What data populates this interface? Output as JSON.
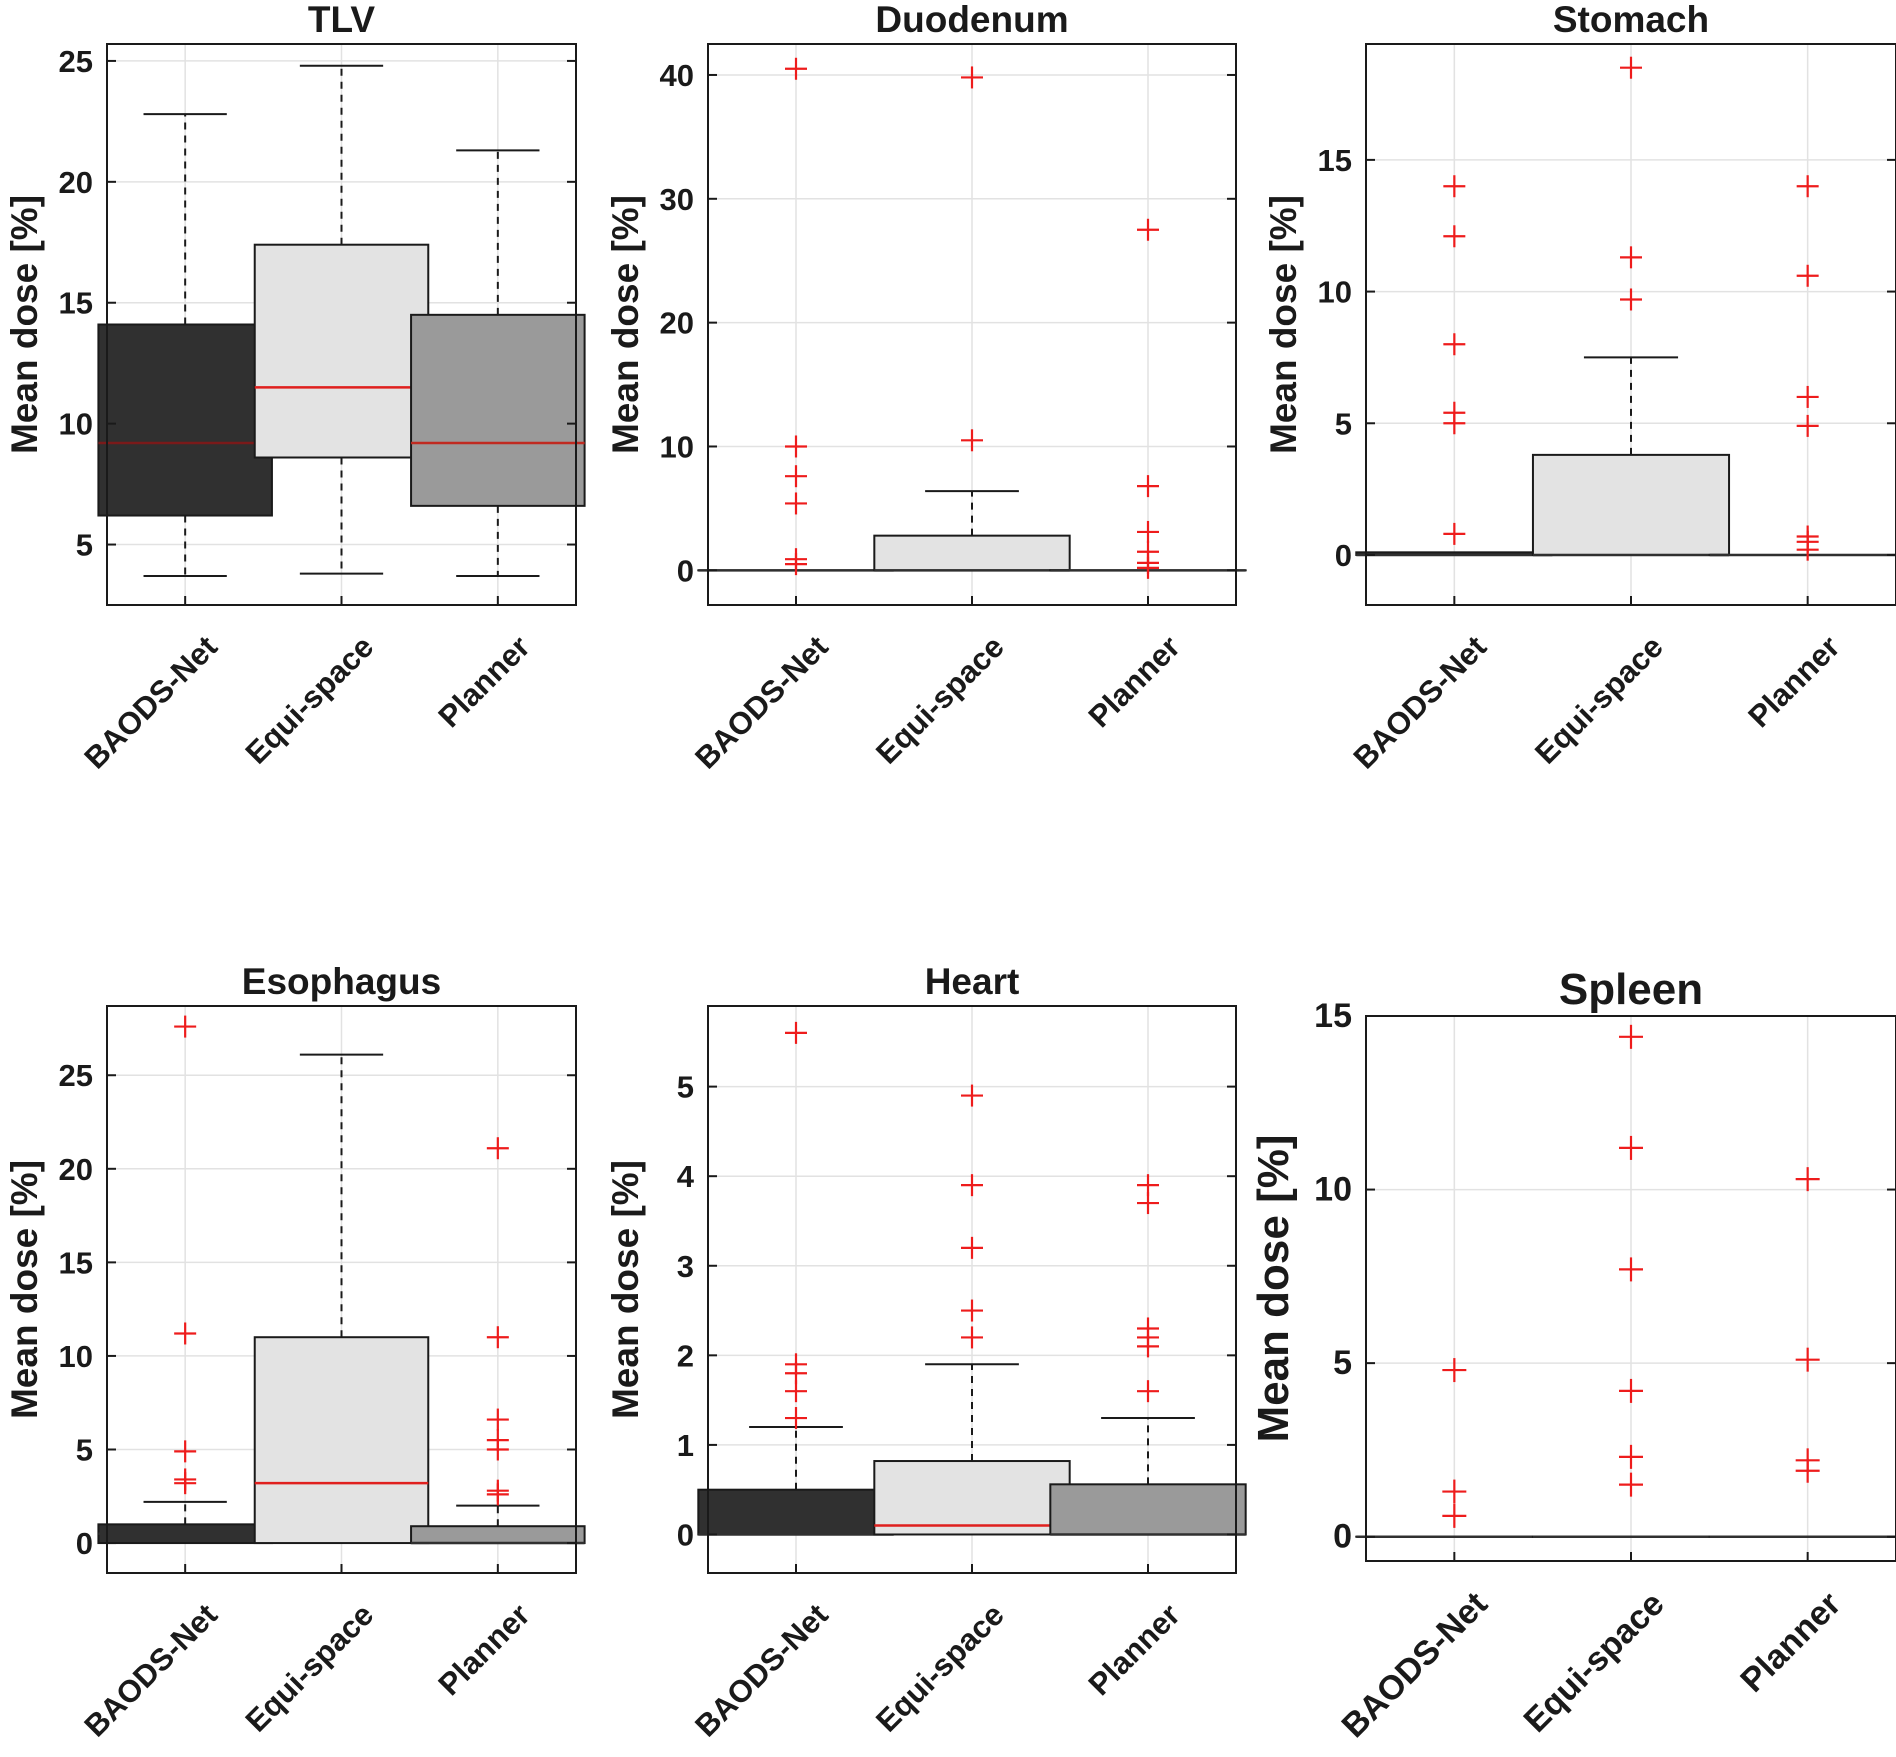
{
  "chart_data": [
    {
      "type": "box",
      "title": "TLV",
      "ylabel": "Mean dose [%]",
      "categories": [
        "BAODS-Net",
        "Equi-space",
        "Planner"
      ],
      "ylim": [
        2.5,
        25.7
      ],
      "yticks": [
        5,
        10,
        15,
        20,
        25
      ],
      "boxes": [
        {
          "whisker_low": 3.7,
          "q1": 6.2,
          "median": 9.2,
          "q3": 14.1,
          "whisker_high": 22.8,
          "fill": "#303030",
          "median_color": "#7a1a1a",
          "outliers": []
        },
        {
          "whisker_low": 3.8,
          "q1": 8.6,
          "median": 11.5,
          "q3": 17.4,
          "whisker_high": 24.8,
          "fill": "#e3e3e3",
          "median_color": "#e0201e",
          "outliers": []
        },
        {
          "whisker_low": 3.7,
          "q1": 6.6,
          "median": 9.2,
          "q3": 14.5,
          "whisker_high": 21.3,
          "fill": "#9a9a9a",
          "median_color": "#c02a20",
          "outliers": []
        }
      ]
    },
    {
      "type": "box",
      "title": "Duodenum",
      "ylabel": "Mean dose [%]",
      "categories": [
        "BAODS-Net",
        "Equi-space",
        "Planner"
      ],
      "ylim": [
        -2.8,
        42.5
      ],
      "yticks": [
        0,
        10,
        20,
        30,
        40
      ],
      "boxes": [
        {
          "whisker_low": 0,
          "q1": 0,
          "median": 0,
          "q3": 0,
          "whisker_high": 0,
          "fill": "#303030",
          "median_color": "#303030",
          "outliers": [
            40.5,
            10.0,
            7.6,
            5.4,
            0.9,
            0.5
          ]
        },
        {
          "whisker_low": 0,
          "q1": 0,
          "median": 0,
          "q3": 2.8,
          "whisker_high": 6.4,
          "fill": "#e3e3e3",
          "median_color": "#303030",
          "outliers": [
            39.8,
            10.5
          ]
        },
        {
          "whisker_low": 0,
          "q1": 0,
          "median": 0,
          "q3": 0,
          "whisker_high": 0,
          "fill": "#9a9a9a",
          "median_color": "#303030",
          "outliers": [
            27.5,
            6.8,
            3.1,
            1.5,
            0.6,
            0.2
          ]
        }
      ]
    },
    {
      "type": "box",
      "title": "Stomach",
      "ylabel": "Mean dose [%]",
      "categories": [
        "BAODS-Net",
        "Equi-space",
        "Planner"
      ],
      "ylim": [
        -1.9,
        19.4
      ],
      "yticks": [
        0,
        5,
        10,
        15
      ],
      "boxes": [
        {
          "whisker_low": 0,
          "q1": 0,
          "median": 0,
          "q3": 0.1,
          "whisker_high": 0.1,
          "fill": "#303030",
          "median_color": "#303030",
          "outliers": [
            14.0,
            12.1,
            8.0,
            5.4,
            5.0,
            0.8
          ]
        },
        {
          "whisker_low": 0,
          "q1": 0,
          "median": 0,
          "q3": 3.8,
          "whisker_high": 7.5,
          "fill": "#e3e3e3",
          "median_color": "#303030",
          "outliers": [
            18.5,
            11.3,
            9.7
          ]
        },
        {
          "whisker_low": 0,
          "q1": 0,
          "median": 0,
          "q3": 0,
          "whisker_high": 0,
          "fill": "#9a9a9a",
          "median_color": "#303030",
          "outliers": [
            14.0,
            10.6,
            6.0,
            4.9,
            0.7,
            0.5,
            0.2
          ]
        }
      ]
    },
    {
      "type": "box",
      "title": "Esophagus",
      "ylabel": "Mean dose [%]",
      "categories": [
        "BAODS-Net",
        "Equi-space",
        "Planner"
      ],
      "ylim": [
        -1.6,
        28.7
      ],
      "yticks": [
        0,
        5,
        10,
        15,
        20,
        25
      ],
      "boxes": [
        {
          "whisker_low": 0,
          "q1": 0,
          "median": 0.5,
          "q3": 1.0,
          "whisker_high": 2.2,
          "fill": "#303030",
          "median_color": "#303030",
          "outliers": [
            27.6,
            11.2,
            4.9,
            3.4,
            3.2
          ]
        },
        {
          "whisker_low": 0,
          "q1": 0,
          "median": 3.2,
          "q3": 11.0,
          "whisker_high": 26.1,
          "fill": "#e3e3e3",
          "median_color": "#e0201e",
          "outliers": []
        },
        {
          "whisker_low": 0,
          "q1": 0,
          "median": 0,
          "q3": 0.9,
          "whisker_high": 2.0,
          "fill": "#9a9a9a",
          "median_color": "#303030",
          "outliers": [
            21.1,
            11.0,
            6.6,
            5.5,
            5.0,
            2.8,
            2.6
          ]
        }
      ]
    },
    {
      "type": "box",
      "title": "Heart",
      "ylabel": "Mean dose [%]",
      "categories": [
        "BAODS-Net",
        "Equi-space",
        "Planner"
      ],
      "ylim": [
        -0.43,
        5.9
      ],
      "yticks": [
        0,
        1,
        2,
        3,
        4,
        5
      ],
      "boxes": [
        {
          "whisker_low": 0,
          "q1": 0,
          "median": 0,
          "q3": 0.5,
          "whisker_high": 1.2,
          "fill": "#303030",
          "median_color": "#303030",
          "outliers": [
            5.6,
            1.9,
            1.8,
            1.6,
            1.3
          ]
        },
        {
          "whisker_low": 0,
          "q1": 0,
          "median": 0.1,
          "q3": 0.82,
          "whisker_high": 1.9,
          "fill": "#e3e3e3",
          "median_color": "#e0201e",
          "outliers": [
            4.9,
            3.9,
            3.2,
            2.5,
            2.2
          ]
        },
        {
          "whisker_low": 0,
          "q1": 0,
          "median": 0,
          "q3": 0.56,
          "whisker_high": 1.3,
          "fill": "#9a9a9a",
          "median_color": "#303030",
          "outliers": [
            3.9,
            3.7,
            2.3,
            2.2,
            2.1,
            1.6
          ]
        }
      ]
    },
    {
      "type": "box",
      "title": "Spleen",
      "ylabel": "Mean dose [%]",
      "categories": [
        "BAODS-Net",
        "Equi-space",
        "Planner"
      ],
      "ylim": [
        -0.7,
        15
      ],
      "yticks": [
        0,
        5,
        10,
        15
      ],
      "boxes": [
        {
          "whisker_low": 0,
          "q1": 0,
          "median": 0,
          "q3": 0,
          "whisker_high": 0,
          "fill": "#303030",
          "median_color": "#303030",
          "outliers": [
            4.8,
            1.3,
            0.6
          ]
        },
        {
          "whisker_low": 0,
          "q1": 0,
          "median": 0,
          "q3": 0,
          "whisker_high": 0,
          "fill": "#e3e3e3",
          "median_color": "#303030",
          "outliers": [
            14.4,
            11.2,
            7.7,
            4.2,
            2.3,
            1.5
          ]
        },
        {
          "whisker_low": 0,
          "q1": 0,
          "median": 0,
          "q3": 0,
          "whisker_high": 0,
          "fill": "#9a9a9a",
          "median_color": "#303030",
          "outliers": [
            10.3,
            5.1,
            2.2,
            1.9
          ]
        }
      ]
    }
  ]
}
